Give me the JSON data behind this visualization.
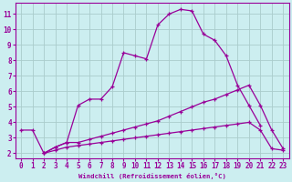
{
  "xlabel": "Windchill (Refroidissement éolien,°C)",
  "background_color": "#cceef0",
  "grid_color": "#aacccc",
  "line_color": "#990099",
  "xlim": [
    -0.5,
    23.5
  ],
  "ylim": [
    1.7,
    11.7
  ],
  "xticks": [
    0,
    1,
    2,
    3,
    4,
    5,
    6,
    7,
    8,
    9,
    10,
    11,
    12,
    13,
    14,
    15,
    16,
    17,
    18,
    19,
    20,
    21,
    22,
    23
  ],
  "yticks": [
    2,
    3,
    4,
    5,
    6,
    7,
    8,
    9,
    10,
    11
  ],
  "curve1_x": [
    0,
    1,
    2,
    3,
    4,
    5,
    6,
    7,
    8,
    9,
    10,
    11,
    12,
    13,
    14,
    15,
    16,
    17,
    18,
    19,
    20,
    21
  ],
  "curve1_y": [
    3.5,
    3.5,
    2.0,
    2.4,
    2.7,
    5.1,
    5.5,
    5.5,
    6.3,
    8.5,
    8.3,
    8.1,
    10.3,
    11.0,
    11.3,
    11.2,
    9.7,
    9.3,
    8.3,
    6.4,
    5.1,
    3.8
  ],
  "curve2_x": [
    2,
    3,
    4,
    5,
    6,
    7,
    8,
    9,
    10,
    11,
    12,
    13,
    14,
    15,
    16,
    17,
    18,
    19,
    20,
    21,
    22,
    23
  ],
  "curve2_y": [
    2.0,
    2.4,
    2.7,
    2.7,
    2.9,
    3.1,
    3.3,
    3.5,
    3.7,
    3.9,
    4.1,
    4.4,
    4.7,
    5.0,
    5.3,
    5.5,
    5.8,
    6.1,
    6.4,
    5.1,
    3.5,
    2.3
  ],
  "curve3_x": [
    2,
    3,
    4,
    5,
    6,
    7,
    8,
    9,
    10,
    11,
    12,
    13,
    14,
    15,
    16,
    17,
    18,
    19,
    20,
    21,
    22,
    23
  ],
  "curve3_y": [
    2.0,
    2.2,
    2.4,
    2.5,
    2.6,
    2.7,
    2.8,
    2.9,
    3.0,
    3.1,
    3.2,
    3.3,
    3.4,
    3.5,
    3.6,
    3.7,
    3.8,
    3.9,
    4.0,
    3.5,
    2.3,
    2.2
  ]
}
